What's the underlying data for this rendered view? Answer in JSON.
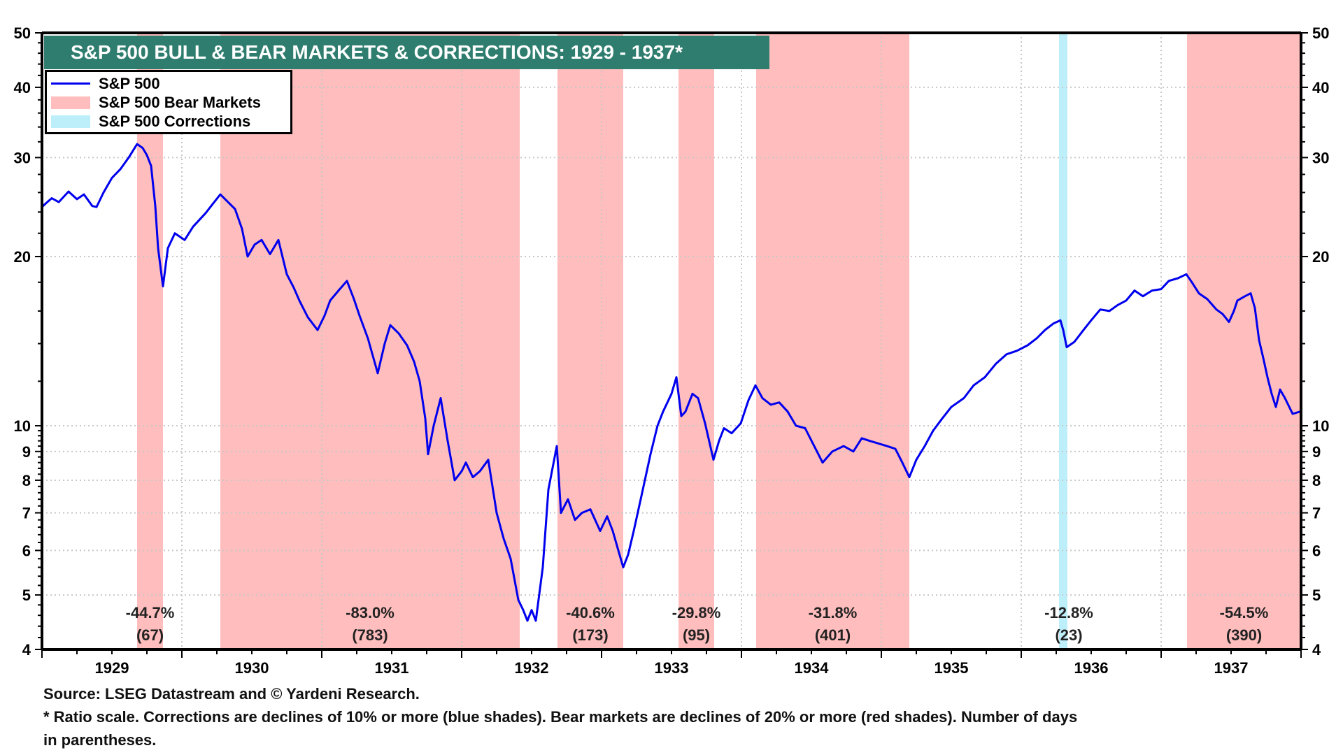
{
  "chart_data": {
    "type": "line",
    "title": "S&P 500 BULL & BEAR MARKETS & CORRECTIONS: 1929 - 1937*",
    "xlabel": "",
    "ylabel": "",
    "y_scale": "log",
    "ylim": [
      4,
      50
    ],
    "xlim": [
      1929.0,
      1938.0
    ],
    "y_ticks": [
      4,
      5,
      6,
      7,
      8,
      9,
      10,
      20,
      30,
      40,
      50
    ],
    "x_tick_labels": [
      "1929",
      "1930",
      "1931",
      "1932",
      "1933",
      "1934",
      "1935",
      "1936",
      "1937"
    ],
    "grid": true,
    "legend_placement": "top-left",
    "legend": [
      {
        "label": "S&P 500",
        "kind": "line",
        "color": "#0000EE"
      },
      {
        "label": "S&P 500 Bear Markets",
        "kind": "band",
        "color": "#FFBDBD"
      },
      {
        "label": "S&P 500 Corrections",
        "kind": "band",
        "color": "#BDEFFA"
      }
    ],
    "bands": [
      {
        "kind": "bear",
        "start": 1929.68,
        "end": 1929.865,
        "decline": "-44.7%",
        "days": "(67)"
      },
      {
        "kind": "bear",
        "start": 1930.275,
        "end": 1932.415,
        "decline": "-83.0%",
        "days": "(783)"
      },
      {
        "kind": "bear",
        "start": 1932.685,
        "end": 1933.155,
        "decline": "-40.6%",
        "days": "(173)"
      },
      {
        "kind": "bear",
        "start": 1933.55,
        "end": 1933.805,
        "decline": "-29.8%",
        "days": "(95)"
      },
      {
        "kind": "bear",
        "start": 1934.105,
        "end": 1935.2,
        "decline": "-31.8%",
        "days": "(401)"
      },
      {
        "kind": "correction",
        "start": 1936.27,
        "end": 1936.33,
        "decline": "-12.8%",
        "days": "(23)"
      },
      {
        "kind": "bear",
        "start": 1937.185,
        "end": 1938.0,
        "decline": "-54.5%",
        "days": "(390)"
      }
    ],
    "series": [
      {
        "name": "S&P 500",
        "color": "#0000EE",
        "x": [
          1929.0,
          1929.03,
          1929.07,
          1929.12,
          1929.19,
          1929.25,
          1929.3,
          1929.36,
          1929.39,
          1929.44,
          1929.5,
          1929.56,
          1929.62,
          1929.68,
          1929.72,
          1929.75,
          1929.78,
          1929.81,
          1929.83,
          1929.865,
          1929.9,
          1929.95,
          1930.02,
          1930.08,
          1930.17,
          1930.22,
          1930.275,
          1930.33,
          1930.38,
          1930.43,
          1930.47,
          1930.52,
          1930.57,
          1930.63,
          1930.69,
          1930.75,
          1930.8,
          1930.84,
          1930.9,
          1930.97,
          1931.02,
          1931.06,
          1931.12,
          1931.18,
          1931.23,
          1931.27,
          1931.33,
          1931.4,
          1931.45,
          1931.49,
          1931.55,
          1931.61,
          1931.66,
          1931.7,
          1931.74,
          1931.76,
          1931.8,
          1931.85,
          1931.9,
          1931.95,
          1932.0,
          1932.03,
          1932.08,
          1932.13,
          1932.19,
          1932.25,
          1932.3,
          1932.35,
          1932.405,
          1932.44,
          1932.47,
          1932.5,
          1932.53,
          1932.58,
          1932.62,
          1932.68,
          1932.71,
          1932.76,
          1932.81,
          1932.86,
          1932.92,
          1932.99,
          1933.04,
          1933.08,
          1933.12,
          1933.155,
          1933.19,
          1933.23,
          1933.29,
          1933.35,
          1933.4,
          1933.44,
          1933.5,
          1933.535,
          1933.57,
          1933.6,
          1933.65,
          1933.69,
          1933.74,
          1933.8,
          1933.84,
          1933.875,
          1933.93,
          1933.995,
          1934.05,
          1934.1,
          1934.15,
          1934.21,
          1934.27,
          1934.33,
          1934.39,
          1934.455,
          1934.52,
          1934.58,
          1934.65,
          1934.73,
          1934.8,
          1934.86,
          1934.915,
          1934.98,
          1935.04,
          1935.1,
          1935.15,
          1935.2,
          1935.25,
          1935.31,
          1935.37,
          1935.435,
          1935.5,
          1935.59,
          1935.66,
          1935.74,
          1935.82,
          1935.895,
          1935.97,
          1936.045,
          1936.11,
          1936.17,
          1936.23,
          1936.28,
          1936.3,
          1936.325,
          1936.38,
          1936.445,
          1936.5,
          1936.565,
          1936.63,
          1936.69,
          1936.75,
          1936.81,
          1936.87,
          1936.935,
          1937.0,
          1937.055,
          1937.12,
          1937.18,
          1937.22,
          1937.27,
          1937.33,
          1937.395,
          1937.44,
          1937.485,
          1937.52,
          1937.545,
          1937.6,
          1937.64,
          1937.67,
          1937.7,
          1937.73,
          1937.76,
          1937.79,
          1937.82,
          1937.85,
          1937.885,
          1937.94,
          1937.995
        ],
        "values": [
          24.5,
          24.9,
          25.4,
          25.0,
          26.1,
          25.3,
          25.8,
          24.6,
          24.5,
          26.0,
          27.6,
          28.6,
          30.0,
          31.7,
          31.2,
          30.3,
          29.0,
          24.6,
          20.7,
          17.7,
          20.7,
          22.0,
          21.4,
          22.6,
          23.9,
          24.8,
          25.8,
          25.0,
          24.3,
          22.4,
          20.0,
          21.0,
          21.4,
          20.2,
          21.4,
          18.6,
          17.6,
          16.7,
          15.6,
          14.8,
          15.7,
          16.7,
          17.4,
          18.1,
          16.8,
          15.7,
          14.3,
          12.4,
          14.0,
          15.1,
          14.6,
          13.9,
          13.0,
          12.0,
          10.3,
          8.9,
          10.0,
          11.2,
          9.4,
          8.0,
          8.3,
          8.6,
          8.1,
          8.3,
          8.7,
          7.0,
          6.3,
          5.8,
          4.9,
          4.7,
          4.5,
          4.7,
          4.5,
          5.6,
          7.7,
          9.2,
          7.0,
          7.4,
          6.8,
          7.0,
          7.1,
          6.5,
          6.9,
          6.5,
          6.0,
          5.6,
          5.9,
          6.5,
          7.6,
          8.9,
          10.0,
          10.6,
          11.4,
          12.2,
          10.4,
          10.6,
          11.4,
          11.2,
          10.1,
          8.7,
          9.4,
          9.9,
          9.7,
          10.1,
          11.1,
          11.8,
          11.2,
          10.9,
          11.0,
          10.6,
          10.0,
          9.9,
          9.2,
          8.6,
          9.0,
          9.2,
          9.0,
          9.5,
          9.4,
          9.3,
          9.2,
          9.1,
          8.6,
          8.1,
          8.7,
          9.2,
          9.8,
          10.3,
          10.8,
          11.2,
          11.8,
          12.2,
          12.9,
          13.4,
          13.6,
          13.9,
          14.3,
          14.8,
          15.2,
          15.4,
          14.8,
          13.8,
          14.1,
          14.8,
          15.4,
          16.1,
          16.0,
          16.4,
          16.7,
          17.4,
          17.0,
          17.4,
          17.5,
          18.1,
          18.3,
          18.6,
          18.0,
          17.2,
          16.8,
          16.1,
          15.8,
          15.3,
          16.0,
          16.7,
          17.0,
          17.2,
          16.2,
          14.2,
          13.2,
          12.2,
          11.4,
          10.8,
          11.6,
          11.2,
          10.5,
          10.6
        ]
      }
    ]
  },
  "header": {
    "title": "S&P 500 BULL & BEAR MARKETS & CORRECTIONS: 1929 - 1937*"
  },
  "legend": {
    "items": [
      {
        "label": "S&P 500"
      },
      {
        "label": "S&P 500 Bear Markets"
      },
      {
        "label": "S&P 500 Corrections"
      }
    ]
  },
  "footer": {
    "source": "Source: LSEG Datastream and © Yardeni Research.",
    "note_line1": "* Ratio scale. Corrections are declines of 10% or more (blue shades). Bear markets are declines of 20% or more (red shades). Number of days",
    "note_line2": "in parentheses."
  },
  "colors": {
    "title_bg": "#2E7D6E",
    "bear": "#FFBDBD",
    "correction": "#BDEFFA",
    "line": "#0000EE"
  }
}
